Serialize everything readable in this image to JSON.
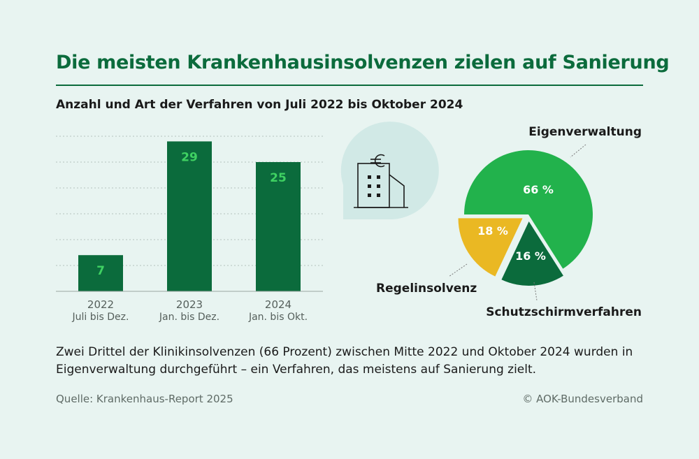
{
  "header": {
    "title": "Die meisten Krankenhausinsolvenzen zielen auf Sanierung",
    "subtitle": "Anzahl und Art der Verfahren von Juli 2022 bis Oktober 2024"
  },
  "icon": {
    "name": "hospital-euro-icon"
  },
  "chart_data": [
    {
      "type": "bar",
      "categories": [
        "2022",
        "2023",
        "2024"
      ],
      "category_sublabels": [
        "Juli bis Dez.",
        "Jan. bis Dez.",
        "Jan. bis Okt."
      ],
      "values": [
        7,
        29,
        25
      ],
      "data_labels": [
        "7",
        "29",
        "25"
      ],
      "ylim": [
        0,
        30
      ],
      "grid": true,
      "color": "#0b6b3c",
      "label_color": "#3fd162"
    },
    {
      "type": "pie",
      "slices": [
        {
          "name": "Eigenverwaltung",
          "value": 66,
          "label": "66 %",
          "color": "#22b24c"
        },
        {
          "name": "Schutzschirmverfahren",
          "value": 16,
          "label": "16 %",
          "color": "#0b6b3c"
        },
        {
          "name": "Regelinsolvenz",
          "value": 18,
          "label": "18 %",
          "color": "#eab823"
        }
      ]
    }
  ],
  "footer": {
    "caption": "Zwei Drittel der Klinikinsolvenzen (66 Prozent) zwischen Mitte 2022 und Oktober 2024 wurden in Eigenverwaltung durchgeführt – ein Verfahren, das meistens auf Sanierung zielt.",
    "source": "Quelle: Krankenhaus-Report 2025",
    "copyright": "© AOK-Bundesverband"
  }
}
